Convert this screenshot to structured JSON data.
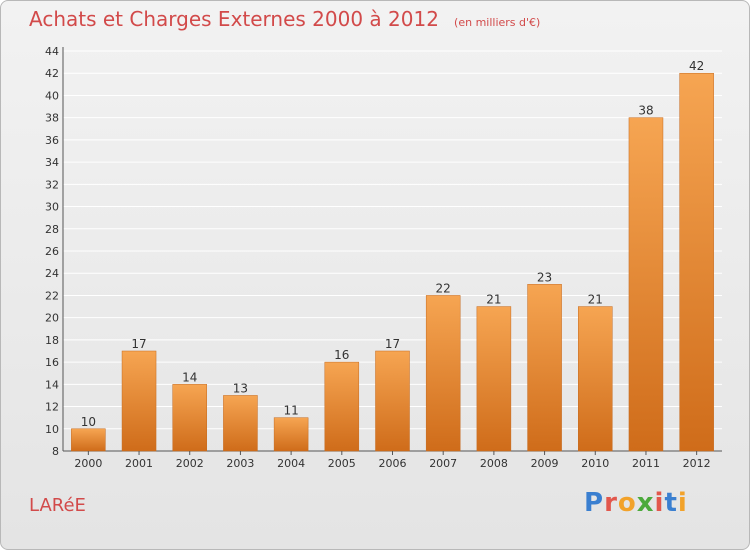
{
  "title": "Achats et Charges Externes 2000 à 2012",
  "subtitle": "(en milliers d'€)",
  "commune": "LARéE",
  "logo": {
    "text": "Proxiti",
    "letter_colors": [
      "#3a7fd0",
      "#e2574c",
      "#f2a22a",
      "#4caa3c",
      "#e2574c",
      "#3a7fd0",
      "#f2a22a"
    ]
  },
  "colors": {
    "bar": "#f0923a",
    "bar_light": "#f6a552",
    "bar_dark": "#cf6c1a",
    "title": "#d24a4a",
    "grid": "#ffffff",
    "axis_text": "#333333"
  },
  "chart_data": {
    "type": "bar",
    "categories": [
      "2000",
      "2001",
      "2002",
      "2003",
      "2004",
      "2005",
      "2006",
      "2007",
      "2008",
      "2009",
      "2010",
      "2011",
      "2012"
    ],
    "values": [
      10,
      17,
      14,
      13,
      11,
      16,
      17,
      22,
      21,
      23,
      21,
      38,
      42
    ],
    "ylim": [
      8,
      44
    ],
    "yticks": [
      8,
      10,
      12,
      14,
      16,
      18,
      20,
      22,
      24,
      26,
      28,
      30,
      32,
      34,
      36,
      38,
      40,
      42,
      44
    ],
    "grid": true,
    "title": "Achats et Charges Externes 2000 à 2012",
    "xlabel": "",
    "ylabel": ""
  }
}
